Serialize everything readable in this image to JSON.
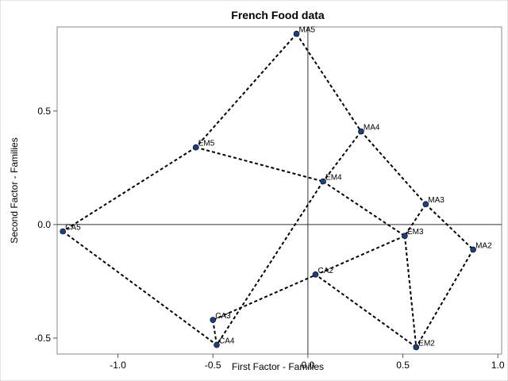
{
  "chart_data": {
    "type": "scatter",
    "title": "French Food data",
    "xlabel": "First Factor - Families",
    "ylabel": "Second Factor - Families",
    "xlim": [
      -1.32,
      1.02
    ],
    "ylim": [
      -0.57,
      0.87
    ],
    "xticks": [
      {
        "value": -1.0,
        "label": "-1.0"
      },
      {
        "value": -0.5,
        "label": "-0.5"
      },
      {
        "value": 0.0,
        "label": "0.0"
      },
      {
        "value": 0.5,
        "label": "0.5"
      },
      {
        "value": 1.0,
        "label": "1.0"
      }
    ],
    "yticks": [
      {
        "value": -0.5,
        "label": "-0.5"
      },
      {
        "value": 0.0,
        "label": "0.0"
      },
      {
        "value": 0.5,
        "label": "0.5"
      }
    ],
    "reference_lines": {
      "x": 0,
      "y": 0
    },
    "point_color": "#1f3f7a",
    "points": [
      {
        "label": "MA5",
        "x": -0.06,
        "y": 0.84
      },
      {
        "label": "MA4",
        "x": 0.28,
        "y": 0.41
      },
      {
        "label": "MA3",
        "x": 0.62,
        "y": 0.09
      },
      {
        "label": "MA2",
        "x": 0.87,
        "y": -0.11
      },
      {
        "label": "EM5",
        "x": -0.59,
        "y": 0.34
      },
      {
        "label": "EM4",
        "x": 0.08,
        "y": 0.19
      },
      {
        "label": "EM3",
        "x": 0.51,
        "y": -0.05
      },
      {
        "label": "EM2",
        "x": 0.57,
        "y": -0.54
      },
      {
        "label": "CA5",
        "x": -1.29,
        "y": -0.03
      },
      {
        "label": "CA4",
        "x": -0.48,
        "y": -0.53
      },
      {
        "label": "CA3",
        "x": -0.5,
        "y": -0.42
      },
      {
        "label": "CA2",
        "x": 0.04,
        "y": -0.22
      }
    ],
    "connections": [
      [
        "MA5",
        "MA4"
      ],
      [
        "MA4",
        "MA3"
      ],
      [
        "MA3",
        "MA2"
      ],
      [
        "EM5",
        "EM4"
      ],
      [
        "EM4",
        "EM3"
      ],
      [
        "EM3",
        "EM2"
      ],
      [
        "CA5",
        "CA4"
      ],
      [
        "CA4",
        "CA3"
      ],
      [
        "MA5",
        "EM5"
      ],
      [
        "EM5",
        "CA5"
      ],
      [
        "MA4",
        "EM4"
      ],
      [
        "EM4",
        "CA4"
      ],
      [
        "MA3",
        "EM3"
      ],
      [
        "EM3",
        "CA3"
      ],
      [
        "MA2",
        "EM2"
      ],
      [
        "EM2",
        "CA2"
      ]
    ]
  }
}
